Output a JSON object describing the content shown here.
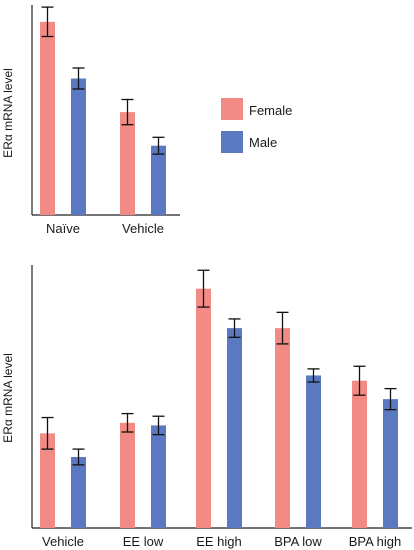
{
  "chart_data": [
    {
      "type": "bar",
      "ylabel": "ERα mRNA level",
      "xlabel": "",
      "ylim": [
        0,
        100
      ],
      "grid": false,
      "legend": "right",
      "categories": [
        "Naïve",
        "Vehicle"
      ],
      "series": [
        {
          "name": "Female",
          "color": "#f28b86",
          "values": [
            92,
            49
          ],
          "errors": [
            7,
            6
          ]
        },
        {
          "name": "Male",
          "color": "#5b79c2",
          "values": [
            65,
            33
          ],
          "errors": [
            5,
            4
          ]
        }
      ]
    },
    {
      "type": "bar",
      "ylabel": "ERα mRNA level",
      "xlabel": "",
      "ylim": [
        0,
        100
      ],
      "grid": false,
      "legend": "none",
      "categories": [
        "Vehicle",
        "EE low",
        "EE high",
        "BPA low",
        "BPA high"
      ],
      "series": [
        {
          "name": "Female",
          "color": "#f28b86",
          "values": [
            36,
            40,
            91,
            76,
            56
          ],
          "errors": [
            6,
            3.5,
            7,
            6,
            5.5
          ]
        },
        {
          "name": "Male",
          "color": "#5b79c2",
          "values": [
            27,
            39,
            76,
            58,
            49
          ],
          "errors": [
            3,
            3.5,
            3.5,
            2.5,
            4
          ]
        }
      ]
    }
  ]
}
